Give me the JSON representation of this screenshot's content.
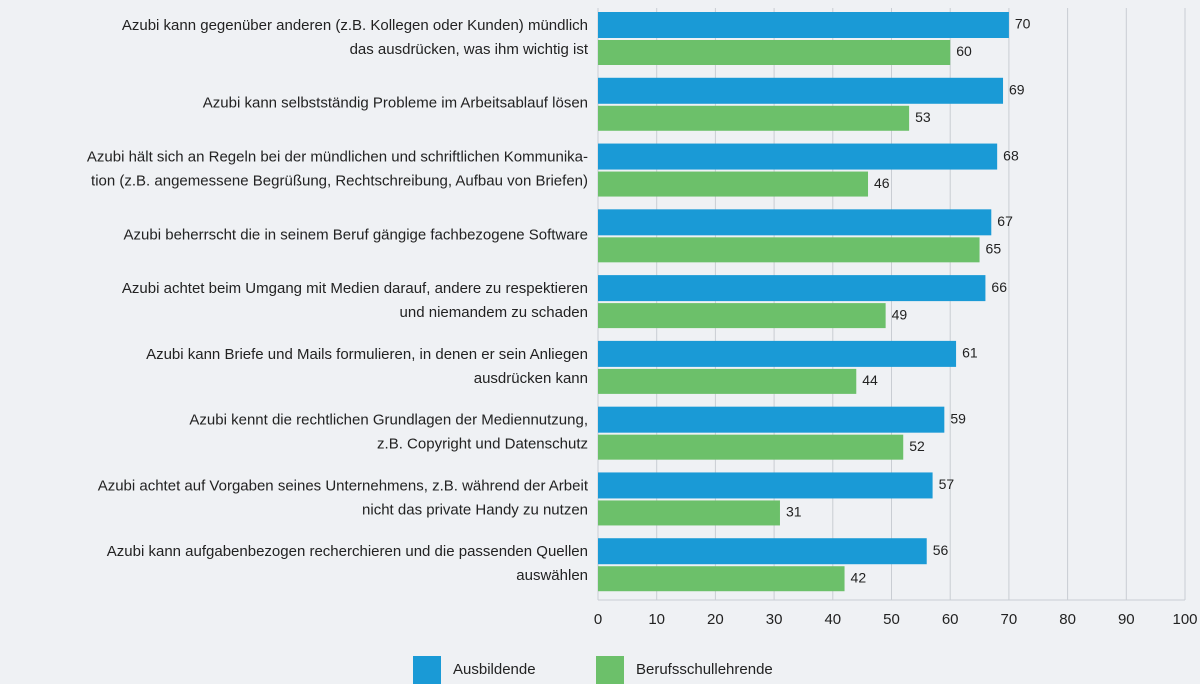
{
  "chart_data": {
    "type": "bar",
    "orientation": "horizontal",
    "categories": [
      [
        "Azubi kann gegenüber anderen (z.B. Kollegen oder Kunden) mündlich",
        "das ausdrücken, was ihm wichtig ist"
      ],
      [
        "Azubi kann selbstständig Probleme im Arbeitsablauf lösen"
      ],
      [
        "Azubi hält sich an Regeln bei der mündlichen und schriftlichen Kommunika-",
        "tion (z.B. angemessene Begrüßung, Rechtschreibung, Aufbau von Briefen)"
      ],
      [
        "Azubi beherrscht die in seinem Beruf gängige fachbezogene Software"
      ],
      [
        "Azubi achtet beim Umgang mit Medien darauf, andere zu respektieren",
        "und niemandem zu schaden"
      ],
      [
        "Azubi kann Briefe und Mails formulieren, in denen er sein Anliegen",
        "ausdrücken kann"
      ],
      [
        "Azubi kennt die rechtlichen Grundlagen der Mediennutzung,",
        "z.B. Copyright und Datenschutz"
      ],
      [
        "Azubi achtet auf Vorgaben seines Unternehmens, z.B. während der Arbeit",
        "nicht das private Handy zu nutzen"
      ],
      [
        "Azubi kann aufgabenbezogen recherchieren und die passenden Quellen",
        "auswählen"
      ]
    ],
    "series": [
      {
        "name": "Ausbildende",
        "color": "#1a9ad6",
        "values": [
          70,
          69,
          68,
          67,
          66,
          61,
          59,
          57,
          56
        ]
      },
      {
        "name": "Berufsschullehrende",
        "color": "#6cc06a",
        "values": [
          60,
          53,
          46,
          65,
          49,
          44,
          52,
          31,
          42
        ]
      }
    ],
    "xlim": [
      0,
      100
    ],
    "xticks": [
      0,
      10,
      20,
      30,
      40,
      50,
      60,
      70,
      80,
      90,
      100
    ],
    "grid": true,
    "legend": "bottom"
  }
}
